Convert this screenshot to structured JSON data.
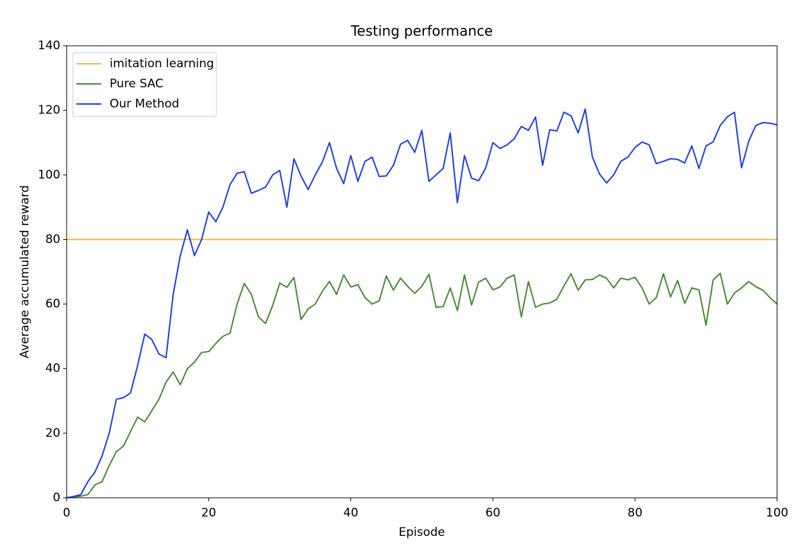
{
  "chart_data": {
    "type": "line",
    "title": "Testing performance",
    "xlabel": "Episode",
    "ylabel": "Average accumulated reward",
    "x": [
      0,
      1,
      2,
      3,
      4,
      5,
      6,
      7,
      8,
      9,
      10,
      11,
      12,
      13,
      14,
      15,
      16,
      17,
      18,
      19,
      20,
      21,
      22,
      23,
      24,
      25,
      26,
      27,
      28,
      29,
      30,
      31,
      32,
      33,
      34,
      35,
      36,
      37,
      38,
      39,
      40,
      41,
      42,
      43,
      44,
      45,
      46,
      47,
      48,
      49,
      50,
      51,
      52,
      53,
      54,
      55,
      56,
      57,
      58,
      59,
      60,
      61,
      62,
      63,
      64,
      65,
      66,
      67,
      68,
      69,
      70,
      71,
      72,
      73,
      74,
      75,
      76,
      77,
      78,
      79,
      80,
      81,
      82,
      83,
      84,
      85,
      86,
      87,
      88,
      89,
      90,
      91,
      92,
      93,
      94,
      95,
      96,
      97,
      98,
      99,
      100
    ],
    "series": [
      {
        "name": "imitation learning",
        "color": "#f0b650",
        "hline": 80
      },
      {
        "name": "Pure SAC",
        "color": "#4a8a35",
        "values": [
          0,
          0.2,
          0.5,
          1,
          4,
          5,
          10,
          14.3,
          16,
          20.5,
          25,
          23.5,
          27,
          30.5,
          35.8,
          39,
          35,
          40,
          42,
          45,
          45.3,
          47.8,
          50,
          51,
          60,
          66.4,
          63,
          56,
          54,
          59.5,
          66.5,
          65.2,
          68.2,
          55.2,
          58.5,
          60,
          64,
          67,
          63,
          69,
          65.3,
          66,
          62,
          60,
          61,
          68.7,
          64.3,
          68,
          65.5,
          63.3,
          65.5,
          69.2,
          59,
          59.2,
          65,
          58,
          69,
          59.7,
          66.8,
          68,
          64.4,
          65.3,
          68,
          69,
          56,
          67,
          59,
          60,
          60.3,
          61.5,
          65.6,
          69.4,
          64.3,
          67.5,
          67.6,
          69,
          68,
          65,
          68,
          67.5,
          68.3,
          65,
          60,
          62,
          69.4,
          62.2,
          67.3,
          60.2,
          65,
          64.4,
          53.5,
          67.5,
          69.5,
          60,
          63.4,
          65,
          67,
          65.4,
          64.3,
          62,
          60
        ]
      },
      {
        "name": "Our Method",
        "color": "#1f3fe0",
        "values": [
          0,
          0.4,
          1,
          5,
          8,
          13,
          20,
          30.5,
          31,
          32.5,
          41,
          50.7,
          49,
          44.5,
          43.4,
          63,
          75,
          83,
          75,
          80,
          88.5,
          85.5,
          90,
          97,
          100.5,
          101,
          94.3,
          95.2,
          96.2,
          100,
          101.4,
          90,
          105,
          99.6,
          95.5,
          100,
          104,
          110,
          102,
          97.3,
          106,
          98,
          104.2,
          105.5,
          99.5,
          99.7,
          103,
          109.5,
          110.7,
          107,
          113.8,
          98,
          100,
          102,
          113,
          91.4,
          106,
          99,
          98.2,
          102.2,
          110,
          108.2,
          109.3,
          111.2,
          115,
          113.8,
          117.9,
          103,
          114,
          113.6,
          119.4,
          118.3,
          113,
          120.4,
          105.6,
          100.3,
          97.5,
          100,
          104.2,
          105.5,
          108.5,
          110.2,
          109.3,
          103.5,
          104.2,
          105,
          104.8,
          103.7,
          109,
          102,
          109,
          110.2,
          115.3,
          118,
          119.4,
          102.2,
          110.4,
          115.3,
          116.2,
          116,
          115.5
        ]
      }
    ],
    "xlim": [
      0,
      100
    ],
    "xticks": [
      0,
      20,
      40,
      60,
      80,
      100
    ],
    "ylim": [
      0,
      140
    ],
    "yticks": [
      0,
      20,
      40,
      60,
      80,
      100,
      120,
      140
    ],
    "legend": "upper left",
    "grid": false
  }
}
